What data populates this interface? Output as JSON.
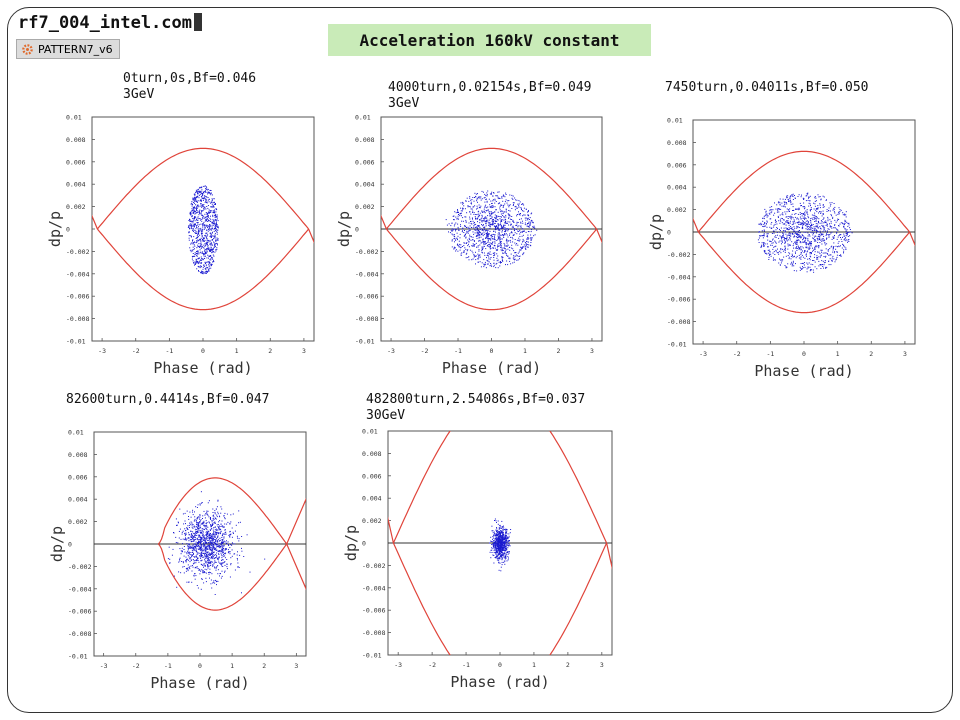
{
  "header": {
    "file_title": "rf7_004_intel.com",
    "pattern_label": "PATTERN7_v6",
    "banner": "Acceleration 160kV constant"
  },
  "colors": {
    "separatrix": "#e0443a",
    "particles": "#1a1ad0",
    "banner_bg": "#c9ebb8"
  },
  "chart_data": [
    {
      "type": "scatter",
      "title_line1": "0turn,0s,Bf=0.046",
      "title_line2": "3GeV",
      "xlabel": "Phase (rad)",
      "ylabel": "dp/p",
      "xlim": [
        -3.3,
        3.3
      ],
      "ylim": [
        -0.01,
        0.01
      ],
      "xticks": [
        "-3",
        "-2",
        "-1",
        "0",
        "1",
        "2",
        "3"
      ],
      "yticks": [
        "0.01",
        "0.008",
        "0.006",
        "0.004",
        "0.002",
        "0",
        "-0.002",
        "-0.004",
        "-0.006",
        "-0.008",
        "-0.01"
      ],
      "separatrix": {
        "shape": "lens",
        "x_range": [
          -3.14,
          3.14
        ],
        "amplitude": 0.0072
      },
      "horizontal_zero_line": false,
      "bunch": {
        "center": [
          0.0,
          0.0
        ],
        "half_width": 0.45,
        "half_height": 0.004,
        "pattern": "filament-core"
      }
    },
    {
      "type": "scatter",
      "title_line1": "4000turn,0.02154s,Bf=0.049",
      "title_line2": "3GeV",
      "xlabel": "Phase (rad)",
      "ylabel": "dp/p",
      "xlim": [
        -3.3,
        3.3
      ],
      "ylim": [
        -0.01,
        0.01
      ],
      "xticks": [
        "-3",
        "-2",
        "-1",
        "0",
        "1",
        "2",
        "3"
      ],
      "yticks": [
        "0.01",
        "0.008",
        "0.006",
        "0.004",
        "0.002",
        "0",
        "-0.002",
        "-0.004",
        "-0.006",
        "-0.008",
        "-0.01"
      ],
      "separatrix": {
        "shape": "lens",
        "x_range": [
          -3.14,
          3.14
        ],
        "amplitude": 0.0072
      },
      "horizontal_zero_line": true,
      "bunch": {
        "center": [
          0.0,
          0.0
        ],
        "half_width": 1.2,
        "half_height": 0.0033,
        "pattern": "spiral"
      }
    },
    {
      "type": "scatter",
      "title_line1": "7450turn,0.04011s,Bf=0.050",
      "title_line2": "",
      "xlabel": "Phase (rad)",
      "ylabel": "dp/p",
      "xlim": [
        -3.3,
        3.3
      ],
      "ylim": [
        -0.01,
        0.01
      ],
      "xticks": [
        "-3",
        "-2",
        "-1",
        "0",
        "1",
        "2",
        "3"
      ],
      "yticks": [
        "0.01",
        "0.008",
        "0.006",
        "0.004",
        "0.002",
        "0",
        "-0.002",
        "-0.004",
        "-0.006",
        "-0.008",
        "-0.01"
      ],
      "separatrix": {
        "shape": "lens",
        "x_range": [
          -3.14,
          3.14
        ],
        "amplitude": 0.0072
      },
      "horizontal_zero_line": true,
      "bunch": {
        "center": [
          0.0,
          0.0
        ],
        "half_width": 1.3,
        "half_height": 0.0034,
        "pattern": "spiral"
      }
    },
    {
      "type": "scatter",
      "title_line1": "82600turn,0.4414s,Bf=0.047",
      "title_line2": "",
      "xlabel": "Phase (rad)",
      "ylabel": "dp/p",
      "xlim": [
        -3.3,
        3.3
      ],
      "ylim": [
        -0.01,
        0.01
      ],
      "xticks": [
        "-3",
        "-2",
        "-1",
        "0",
        "1",
        "2",
        "3"
      ],
      "yticks": [
        "0.01",
        "0.008",
        "0.006",
        "0.004",
        "0.002",
        "0",
        "-0.002",
        "-0.004",
        "-0.006",
        "-0.008",
        "-0.01"
      ],
      "separatrix": {
        "shape": "fish",
        "x_range": [
          -1.3,
          2.7
        ],
        "amplitude": 0.0059
      },
      "horizontal_zero_line": true,
      "bunch": {
        "center": [
          0.2,
          0.0
        ],
        "half_width": 1.0,
        "half_height": 0.0034,
        "pattern": "diffuse"
      }
    },
    {
      "type": "scatter",
      "title_line1": "482800turn,2.54086s,Bf=0.037",
      "title_line2": "30GeV",
      "xlabel": "Phase (rad)",
      "ylabel": "dp/p",
      "xlim": [
        -3.3,
        3.3
      ],
      "ylim": [
        -0.01,
        0.01
      ],
      "xticks": [
        "-3",
        "-2",
        "-1",
        "0",
        "1",
        "2",
        "3"
      ],
      "yticks": [
        "0.01",
        "0.008",
        "0.006",
        "0.004",
        "0.002",
        "0",
        "-0.002",
        "-0.004",
        "-0.006",
        "-0.008",
        "-0.01"
      ],
      "separatrix": {
        "shape": "lens",
        "x_range": [
          -3.14,
          3.14
        ],
        "amplitude": 0.0135
      },
      "horizontal_zero_line": true,
      "bunch": {
        "center": [
          0.0,
          0.0
        ],
        "half_width": 0.3,
        "half_height": 0.0018,
        "pattern": "dense-core"
      }
    }
  ]
}
